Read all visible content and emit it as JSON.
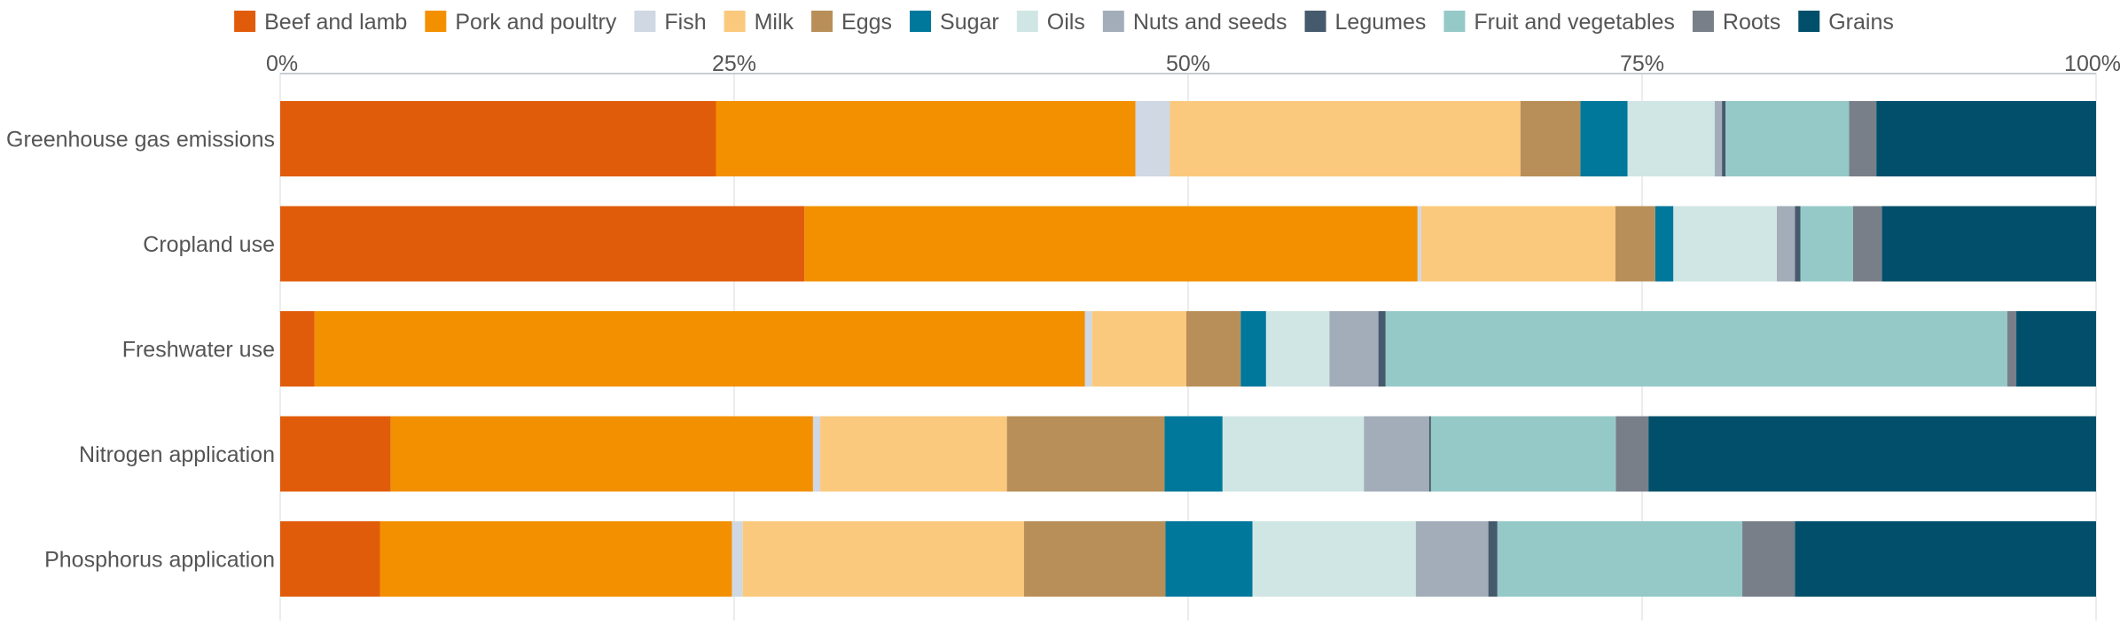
{
  "chart_data": {
    "type": "bar",
    "orientation": "horizontal",
    "stacked": "percent",
    "title": "",
    "xlabel": "",
    "ylabel": "",
    "xlim": [
      0,
      100
    ],
    "x_ticks": [
      0,
      25,
      50,
      75,
      100
    ],
    "x_tick_labels": [
      "0%",
      "25%",
      "50%",
      "75%",
      "100%"
    ],
    "x_axis_position": "top",
    "grid": true,
    "legend_position": "top",
    "categories": [
      "Greenhouse gas emissions",
      "Cropland use",
      "Freshwater use",
      "Nitrogen application",
      "Phosphorus application"
    ],
    "series": [
      {
        "name": "Beef and lamb",
        "color": "#e05c0b",
        "values": [
          24.0,
          28.9,
          1.9,
          6.1,
          5.5
        ]
      },
      {
        "name": "Pork and poultry",
        "color": "#f39000",
        "values": [
          23.1,
          33.8,
          42.5,
          23.3,
          19.4
        ]
      },
      {
        "name": "Fish",
        "color": "#cfd8e3",
        "values": [
          1.9,
          0.2,
          0.4,
          0.4,
          0.6
        ]
      },
      {
        "name": "Milk",
        "color": "#fbc97d",
        "values": [
          19.3,
          10.7,
          5.2,
          10.3,
          15.5
        ]
      },
      {
        "name": "Eggs",
        "color": "#b88f58",
        "values": [
          3.3,
          2.2,
          3.0,
          8.7,
          7.8
        ]
      },
      {
        "name": "Sugar",
        "color": "#00789b",
        "values": [
          2.6,
          1.0,
          1.4,
          3.2,
          4.8
        ]
      },
      {
        "name": "Oils",
        "color": "#d0e6e4",
        "values": [
          4.8,
          5.7,
          3.5,
          7.8,
          9.0
        ]
      },
      {
        "name": "Nuts and seeds",
        "color": "#a2adb9",
        "values": [
          0.4,
          1.0,
          2.7,
          3.6,
          4.0
        ]
      },
      {
        "name": "Legumes",
        "color": "#465a6d",
        "values": [
          0.2,
          0.3,
          0.4,
          0.1,
          0.5
        ]
      },
      {
        "name": "Fruit and vegetables",
        "color": "#95c9c8",
        "values": [
          6.8,
          2.9,
          34.3,
          10.2,
          13.5
        ]
      },
      {
        "name": "Roots",
        "color": "#787f89",
        "values": [
          1.5,
          1.6,
          0.5,
          1.8,
          2.9
        ]
      },
      {
        "name": "Grains",
        "color": "#014f6a",
        "values": [
          12.1,
          11.8,
          4.4,
          24.7,
          16.6
        ]
      }
    ]
  }
}
